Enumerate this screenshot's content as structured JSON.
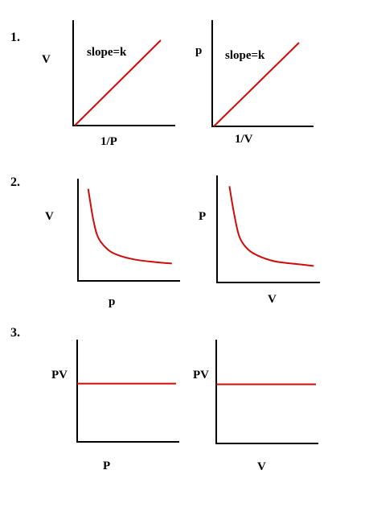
{
  "colors": {
    "axis": "#000000",
    "series": "#d10a0a"
  },
  "rows": [
    {
      "number": "1."
    },
    {
      "number": "2."
    },
    {
      "number": "3."
    }
  ],
  "chart_data": [
    {
      "type": "line",
      "xlabel": "1/P",
      "ylabel": "V",
      "annotation": "slope=k",
      "xlim": [
        0,
        1
      ],
      "ylim": [
        0,
        1
      ],
      "series": [
        {
          "x": [
            0,
            1
          ],
          "y": [
            0,
            1
          ]
        }
      ]
    },
    {
      "type": "line",
      "xlabel": "1/V",
      "ylabel": "p",
      "annotation": "slope=k",
      "xlim": [
        0,
        1
      ],
      "ylim": [
        0,
        1
      ],
      "series": [
        {
          "x": [
            0,
            1
          ],
          "y": [
            0,
            1
          ]
        }
      ]
    },
    {
      "type": "line",
      "xlabel": "p",
      "ylabel": "V",
      "xlim": [
        0,
        1
      ],
      "ylim": [
        0,
        1
      ],
      "series": [
        {
          "x": [
            0.1,
            0.15,
            0.2,
            0.3,
            0.4,
            0.55,
            0.7,
            0.85,
            0.92
          ],
          "y": [
            0.9,
            0.6,
            0.42,
            0.3,
            0.25,
            0.21,
            0.19,
            0.175,
            0.17
          ]
        }
      ]
    },
    {
      "type": "line",
      "xlabel": "V",
      "ylabel": "P",
      "xlim": [
        0,
        1
      ],
      "ylim": [
        0,
        1
      ],
      "series": [
        {
          "x": [
            0.12,
            0.17,
            0.22,
            0.3,
            0.4,
            0.55,
            0.7,
            0.85,
            0.94
          ],
          "y": [
            0.9,
            0.62,
            0.42,
            0.31,
            0.25,
            0.2,
            0.18,
            0.165,
            0.155
          ]
        }
      ]
    },
    {
      "type": "line",
      "xlabel": "P",
      "ylabel": "PV",
      "xlim": [
        0,
        1
      ],
      "ylim": [
        0,
        1
      ],
      "series": [
        {
          "x": [
            0,
            1
          ],
          "y": [
            0.57,
            0.57
          ]
        }
      ]
    },
    {
      "type": "line",
      "xlabel": "V",
      "ylabel": "PV",
      "xlim": [
        0,
        1
      ],
      "ylim": [
        0,
        1
      ],
      "series": [
        {
          "x": [
            0,
            1
          ],
          "y": [
            0.57,
            0.57
          ]
        }
      ]
    }
  ]
}
